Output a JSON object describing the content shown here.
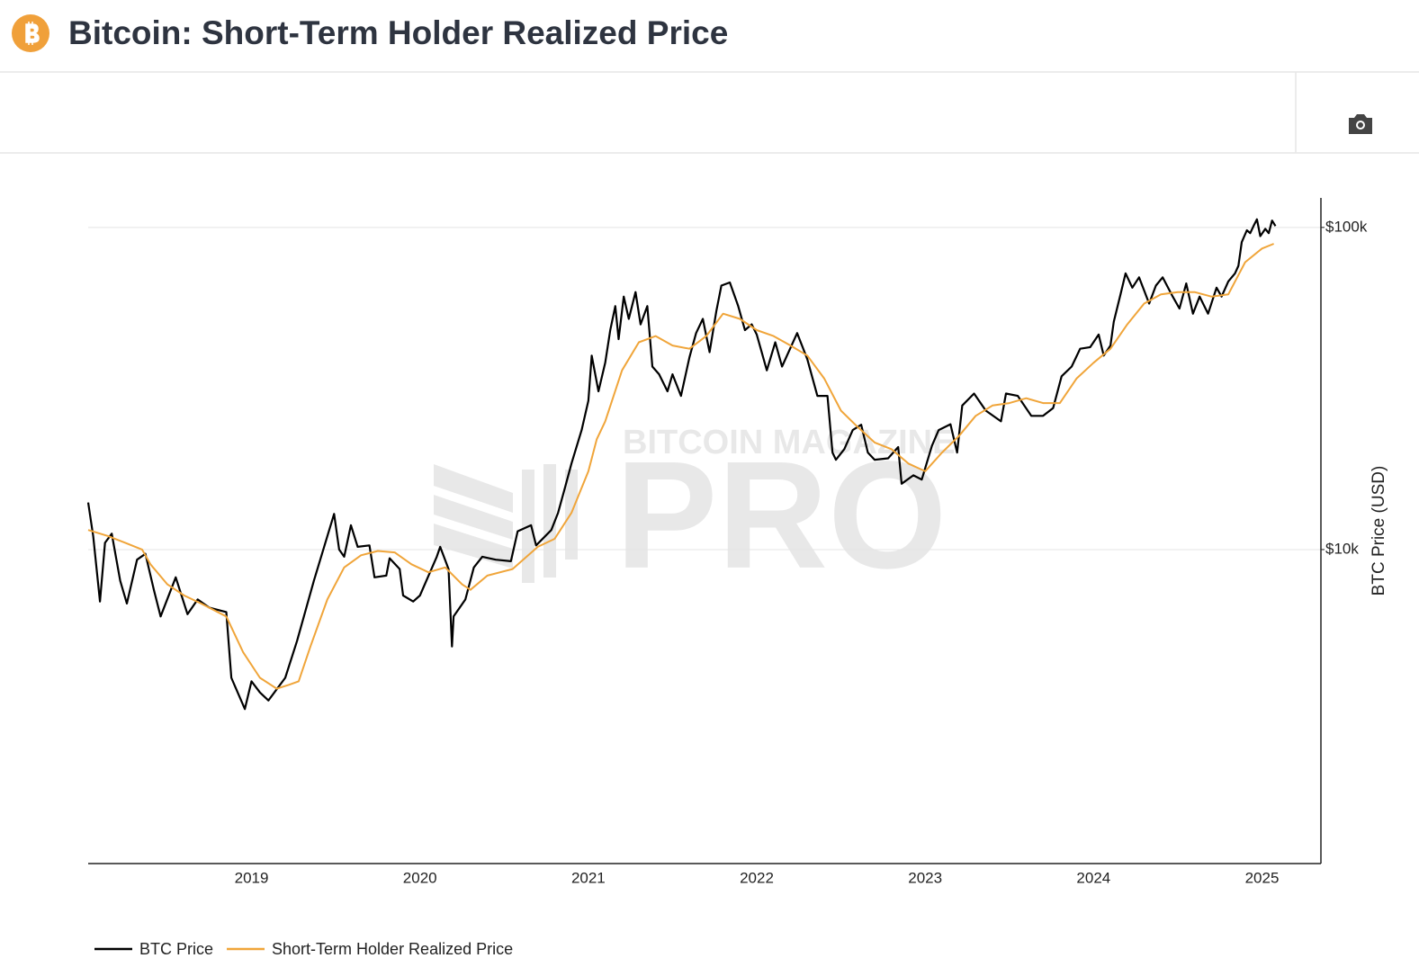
{
  "chart_data": {
    "type": "line",
    "title": "Bitcoin: Short-Term Holder Realized Price",
    "y_label": "BTC Price (USD)",
    "watermark": {
      "top": "BITCOIN MAGAZINE",
      "main": "PRO"
    },
    "log_y": true,
    "grid": true,
    "legend": "bottom-left",
    "xlim": [
      2018.03,
      2025.35
    ],
    "xticks": [
      2019,
      2020,
      2021,
      2022,
      2023,
      2024,
      2025
    ],
    "ylim": [
      1060,
      123500
    ],
    "yticks": [
      {
        "value": 10000,
        "label": "$10k"
      },
      {
        "value": 100000,
        "label": "$100k"
      }
    ],
    "series": [
      {
        "name": "BTC Price",
        "color": "#000000",
        "x": [
          2018.03,
          2018.06,
          2018.1,
          2018.13,
          2018.17,
          2018.22,
          2018.26,
          2018.32,
          2018.37,
          2018.42,
          2018.46,
          2018.55,
          2018.62,
          2018.68,
          2018.75,
          2018.85,
          2018.88,
          2018.96,
          2019.0,
          2019.05,
          2019.1,
          2019.2,
          2019.27,
          2019.37,
          2019.45,
          2019.49,
          2019.52,
          2019.55,
          2019.59,
          2019.63,
          2019.7,
          2019.73,
          2019.8,
          2019.82,
          2019.88,
          2019.9,
          2019.96,
          2020.0,
          2020.1,
          2020.12,
          2020.17,
          2020.19,
          2020.2,
          2020.27,
          2020.32,
          2020.37,
          2020.45,
          2020.54,
          2020.58,
          2020.66,
          2020.69,
          2020.78,
          2020.82,
          2020.86,
          2020.9,
          2020.96,
          2021.0,
          2021.02,
          2021.06,
          2021.1,
          2021.13,
          2021.16,
          2021.18,
          2021.21,
          2021.24,
          2021.28,
          2021.31,
          2021.35,
          2021.38,
          2021.42,
          2021.47,
          2021.5,
          2021.55,
          2021.6,
          2021.64,
          2021.68,
          2021.72,
          2021.76,
          2021.79,
          2021.84,
          2021.89,
          2021.93,
          2021.97,
          2022.0,
          2022.06,
          2022.11,
          2022.15,
          2022.24,
          2022.3,
          2022.36,
          2022.42,
          2022.45,
          2022.47,
          2022.52,
          2022.57,
          2022.62,
          2022.66,
          2022.7,
          2022.78,
          2022.84,
          2022.86,
          2022.93,
          2022.98,
          2023.04,
          2023.08,
          2023.15,
          2023.19,
          2023.22,
          2023.29,
          2023.36,
          2023.45,
          2023.48,
          2023.55,
          2023.63,
          2023.7,
          2023.76,
          2023.81,
          2023.87,
          2023.92,
          2023.98,
          2024.03,
          2024.06,
          2024.1,
          2024.12,
          2024.16,
          2024.19,
          2024.23,
          2024.27,
          2024.33,
          2024.37,
          2024.41,
          2024.47,
          2024.51,
          2024.55,
          2024.59,
          2024.63,
          2024.68,
          2024.73,
          2024.76,
          2024.8,
          2024.84,
          2024.86,
          2024.88,
          2024.91,
          2024.93,
          2024.95,
          2024.97,
          2024.99,
          2025.02,
          2025.04,
          2025.06,
          2025.08
        ],
        "values": [
          14000,
          11000,
          6900,
          10500,
          11200,
          8000,
          6800,
          9300,
          9700,
          7500,
          6200,
          8200,
          6300,
          7000,
          6600,
          6400,
          4000,
          3200,
          3900,
          3600,
          3400,
          4000,
          5200,
          8000,
          11000,
          12900,
          10000,
          9500,
          11900,
          10200,
          10300,
          8200,
          8300,
          9400,
          8700,
          7200,
          6900,
          7200,
          9500,
          10200,
          8700,
          5000,
          6200,
          7000,
          8800,
          9500,
          9300,
          9200,
          11400,
          11900,
          10300,
          11500,
          13000,
          15500,
          18500,
          23500,
          29000,
          40000,
          31000,
          38000,
          48000,
          57000,
          45000,
          61000,
          52000,
          63000,
          50000,
          57000,
          37000,
          35000,
          31000,
          35000,
          30000,
          39500,
          47000,
          52000,
          41000,
          55000,
          66000,
          67500,
          57000,
          48000,
          50000,
          46500,
          36000,
          44000,
          37000,
          47000,
          39000,
          30000,
          30000,
          20000,
          19000,
          20500,
          23500,
          24400,
          20000,
          19000,
          19200,
          20800,
          16000,
          17000,
          16500,
          21000,
          23500,
          24500,
          20000,
          28000,
          30500,
          27000,
          25000,
          30500,
          30000,
          26000,
          26000,
          27500,
          34500,
          37000,
          42000,
          42500,
          46500,
          40000,
          43000,
          51000,
          62000,
          72000,
          65000,
          70000,
          58000,
          66000,
          70000,
          61000,
          56000,
          67000,
          54000,
          61000,
          54000,
          65000,
          61000,
          68000,
          72000,
          76000,
          90000,
          98000,
          96000,
          101000,
          106000,
          94000,
          99000,
          96000,
          105000,
          101000
        ]
      },
      {
        "name": "Short-Term Holder Realized Price",
        "color": "#f0a53a",
        "x": [
          2018.03,
          2018.15,
          2018.25,
          2018.35,
          2018.4,
          2018.5,
          2018.6,
          2018.7,
          2018.85,
          2018.95,
          2019.05,
          2019.15,
          2019.22,
          2019.28,
          2019.35,
          2019.45,
          2019.55,
          2019.65,
          2019.75,
          2019.85,
          2019.95,
          2020.05,
          2020.15,
          2020.25,
          2020.3,
          2020.4,
          2020.55,
          2020.7,
          2020.8,
          2020.9,
          2021.0,
          2021.05,
          2021.1,
          2021.2,
          2021.3,
          2021.4,
          2021.5,
          2021.6,
          2021.7,
          2021.8,
          2021.9,
          2022.0,
          2022.1,
          2022.2,
          2022.3,
          2022.4,
          2022.5,
          2022.6,
          2022.7,
          2022.8,
          2022.9,
          2023.0,
          2023.1,
          2023.2,
          2023.3,
          2023.4,
          2023.5,
          2023.6,
          2023.7,
          2023.8,
          2023.9,
          2024.0,
          2024.1,
          2024.2,
          2024.3,
          2024.4,
          2024.5,
          2024.6,
          2024.7,
          2024.8,
          2024.9,
          2025.0,
          2025.07
        ],
        "values": [
          11500,
          11000,
          10500,
          10000,
          9000,
          7800,
          7200,
          6800,
          6200,
          4800,
          4000,
          3700,
          3800,
          3900,
          5000,
          7000,
          8800,
          9600,
          9900,
          9800,
          9000,
          8500,
          8800,
          7800,
          7500,
          8300,
          8700,
          10200,
          10800,
          13000,
          17500,
          22000,
          25000,
          36000,
          44000,
          46000,
          43000,
          42000,
          46000,
          54000,
          52000,
          48000,
          46000,
          43000,
          40000,
          34000,
          27000,
          24000,
          21500,
          20500,
          18500,
          17500,
          20000,
          22500,
          26000,
          28000,
          28500,
          29500,
          28500,
          28500,
          34000,
          38000,
          42000,
          50000,
          58000,
          62000,
          63000,
          63000,
          61000,
          62000,
          78000,
          86000,
          89000
        ]
      }
    ]
  }
}
